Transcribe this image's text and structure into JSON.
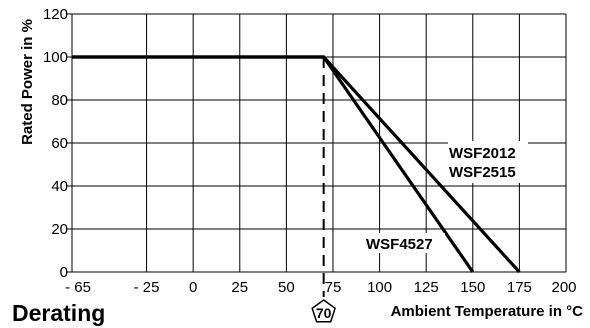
{
  "chart_data": {
    "type": "line",
    "title": "Derating",
    "xlabel": "Ambient Temperature in °C",
    "ylabel": "Rated Power in %",
    "xlim": [
      -65,
      200
    ],
    "ylim": [
      0,
      120
    ],
    "grid": true,
    "x_ticks": [
      -65,
      -25,
      0,
      25,
      50,
      75,
      100,
      125,
      150,
      175,
      200
    ],
    "x_tick_labels": [
      "- 65",
      "- 25",
      "0",
      "25",
      "50",
      "75",
      "100",
      "125",
      "150",
      "175",
      "200"
    ],
    "y_ticks": [
      0,
      20,
      40,
      60,
      80,
      100,
      120
    ],
    "y_tick_labels": [
      "0",
      "20",
      "40",
      "60",
      "80",
      "100",
      "120"
    ],
    "series": [
      {
        "name": "WSF2012\nWSF2515",
        "x": [
          -65,
          70,
          175
        ],
        "y": [
          100,
          100,
          0
        ]
      },
      {
        "name": "WSF4527",
        "x": [
          -65,
          70,
          150
        ],
        "y": [
          100,
          100,
          0
        ]
      }
    ],
    "annotations": [
      {
        "text": "70",
        "x": 70,
        "style": "dashed vertical line with pentagon marker"
      }
    ]
  }
}
